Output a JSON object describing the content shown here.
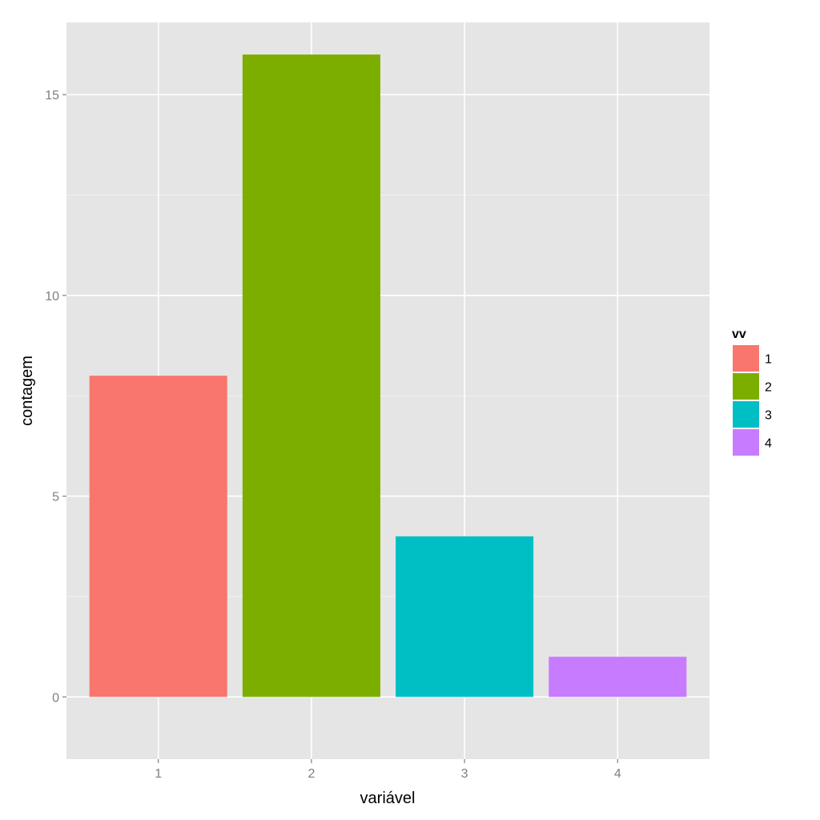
{
  "chart_data": {
    "type": "bar",
    "categories": [
      "1",
      "2",
      "3",
      "4"
    ],
    "values": [
      8,
      16,
      4,
      1
    ],
    "colors": [
      "#F8766D",
      "#7CAE00",
      "#00BFC4",
      "#C77CFF"
    ],
    "xlabel": "variável",
    "ylabel": "contagem",
    "ylim": [
      -1.55,
      16.8
    ],
    "yticks": [
      0,
      5,
      10,
      15
    ],
    "ytick_labels": [
      "0",
      "5",
      "10",
      "15"
    ],
    "grid": true,
    "legend": {
      "title": "vv",
      "position": "right",
      "entries": [
        "1",
        "2",
        "3",
        "4"
      ]
    },
    "panel_background": "#E5E5E5",
    "grid_color": "#FFFFFF"
  }
}
